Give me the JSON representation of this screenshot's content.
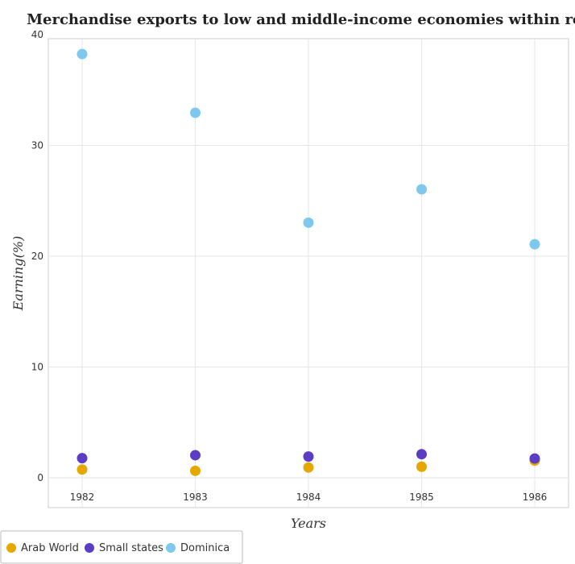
{
  "chart_data": {
    "type": "scatter",
    "title": "Merchandise exports to low and middle-income economies within region",
    "xlabel": "Years",
    "ylabel": "Earning(%)",
    "categories": [
      "1982",
      "1983",
      "1984",
      "1985",
      "1986"
    ],
    "ylim": [
      0,
      40
    ],
    "yticks": [
      "0",
      "10",
      "20",
      "30",
      "40"
    ],
    "grid": true,
    "legend_position": "bottom-left",
    "series": [
      {
        "name": "Arab World",
        "color": "#e6a800",
        "values": [
          0.75,
          0.63,
          0.93,
          1.0,
          1.55
        ]
      },
      {
        "name": "Small states",
        "color": "#5b3cc4",
        "values": [
          1.77,
          2.04,
          1.92,
          2.13,
          1.74
        ]
      },
      {
        "name": "Dominica",
        "color": "#7ec8ee",
        "values": [
          38.25,
          32.95,
          23.03,
          26.04,
          21.08
        ]
      }
    ]
  }
}
